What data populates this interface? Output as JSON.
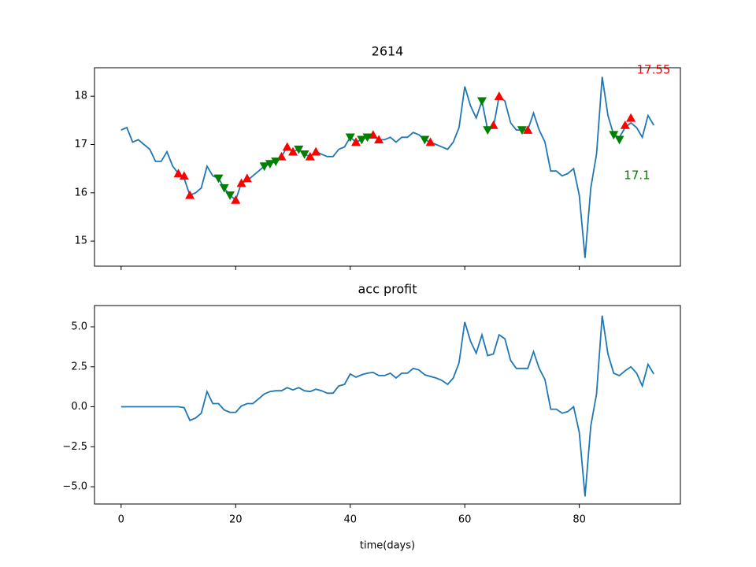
{
  "chart_data": [
    {
      "type": "line",
      "title": "2614",
      "color": "#1f77b4",
      "x": [
        0,
        1,
        2,
        3,
        4,
        5,
        6,
        7,
        8,
        9,
        10,
        11,
        12,
        13,
        14,
        15,
        16,
        17,
        18,
        19,
        20,
        21,
        22,
        23,
        24,
        25,
        26,
        27,
        28,
        29,
        30,
        31,
        32,
        33,
        34,
        35,
        36,
        37,
        38,
        39,
        40,
        41,
        42,
        43,
        44,
        45,
        46,
        47,
        48,
        49,
        50,
        51,
        52,
        53,
        54,
        55,
        56,
        57,
        58,
        59,
        60,
        61,
        62,
        63,
        64,
        65,
        66,
        67,
        68,
        69,
        70,
        71,
        72,
        73,
        74,
        75,
        76,
        77,
        78,
        79,
        80,
        81,
        82,
        83,
        84,
        85,
        86,
        87,
        88,
        89,
        90,
        91,
        92,
        93
      ],
      "values": [
        17.3,
        17.35,
        17.05,
        17.1,
        17.0,
        16.9,
        16.65,
        16.65,
        16.85,
        16.55,
        16.4,
        16.3,
        15.95,
        16.0,
        16.1,
        16.55,
        16.35,
        16.3,
        16.1,
        15.95,
        15.85,
        16.2,
        16.25,
        16.35,
        16.45,
        16.55,
        16.6,
        16.65,
        16.75,
        16.95,
        16.85,
        16.9,
        16.8,
        16.75,
        16.85,
        16.8,
        16.75,
        16.75,
        16.9,
        16.95,
        17.15,
        17.05,
        17.1,
        17.15,
        17.2,
        17.1,
        17.1,
        17.15,
        17.05,
        17.15,
        17.15,
        17.25,
        17.2,
        17.1,
        17.05,
        17.0,
        16.95,
        16.9,
        17.05,
        17.35,
        18.2,
        17.8,
        17.55,
        17.9,
        17.3,
        17.35,
        18.0,
        17.9,
        17.45,
        17.3,
        17.3,
        17.3,
        17.65,
        17.3,
        17.05,
        16.45,
        16.45,
        16.35,
        16.4,
        16.5,
        15.95,
        14.65,
        16.1,
        16.8,
        18.4,
        17.6,
        17.2,
        17.15,
        17.35,
        17.45,
        17.35,
        17.15,
        17.6,
        17.4
      ],
      "buy": {
        "color": "red",
        "x": [
          10,
          11,
          12,
          20,
          21,
          22,
          28,
          29,
          30,
          33,
          34,
          41,
          44,
          45,
          54,
          65,
          66,
          71,
          88,
          89
        ],
        "values": [
          16.4,
          16.35,
          15.95,
          15.85,
          16.2,
          16.3,
          16.75,
          16.95,
          16.85,
          16.75,
          16.85,
          17.05,
          17.2,
          17.1,
          17.05,
          17.4,
          18.0,
          17.3,
          17.4,
          17.55
        ]
      },
      "sell": {
        "color": "green",
        "x": [
          17,
          18,
          19,
          25,
          26,
          27,
          31,
          32,
          40,
          42,
          43,
          53,
          63,
          64,
          70,
          86,
          87
        ],
        "values": [
          16.3,
          16.1,
          15.95,
          16.55,
          16.6,
          16.65,
          16.9,
          16.8,
          17.15,
          17.1,
          17.15,
          17.1,
          17.9,
          17.3,
          17.3,
          17.2,
          17.1
        ]
      },
      "annotations": [
        {
          "text": "17.55",
          "color": "red"
        },
        {
          "text": "17.1",
          "color": "green"
        }
      ],
      "xlim": [
        -4.65,
        97.65
      ],
      "xticks": [
        0,
        20,
        40,
        60,
        80
      ],
      "ylim": [
        14.48,
        18.59
      ],
      "yticks": [
        15,
        16,
        17,
        18
      ]
    },
    {
      "type": "line",
      "title": "acc profit",
      "color": "#1f77b4",
      "xlabel": "time(days)",
      "x": [
        0,
        1,
        2,
        3,
        4,
        5,
        6,
        7,
        8,
        9,
        10,
        11,
        12,
        13,
        14,
        15,
        16,
        17,
        18,
        19,
        20,
        21,
        22,
        23,
        24,
        25,
        26,
        27,
        28,
        29,
        30,
        31,
        32,
        33,
        34,
        35,
        36,
        37,
        38,
        39,
        40,
        41,
        42,
        43,
        44,
        45,
        46,
        47,
        48,
        49,
        50,
        51,
        52,
        53,
        54,
        55,
        56,
        57,
        58,
        59,
        60,
        61,
        62,
        63,
        64,
        65,
        66,
        67,
        68,
        69,
        70,
        71,
        72,
        73,
        74,
        75,
        76,
        77,
        78,
        79,
        80,
        81,
        82,
        83,
        84,
        85,
        86,
        87,
        88,
        89,
        90,
        91,
        92,
        93
      ],
      "values": [
        0,
        0,
        0,
        0,
        0,
        0,
        0,
        0,
        0,
        0,
        0,
        -0.05,
        -0.85,
        -0.7,
        -0.4,
        0.95,
        0.2,
        0.2,
        -0.2,
        -0.35,
        -0.35,
        0.05,
        0.2,
        0.2,
        0.5,
        0.8,
        0.95,
        1.0,
        1.0,
        1.2,
        1.05,
        1.2,
        1.0,
        0.95,
        1.1,
        1.0,
        0.85,
        0.85,
        1.3,
        1.4,
        2.05,
        1.85,
        2.0,
        2.1,
        2.15,
        1.95,
        1.95,
        2.1,
        1.8,
        2.1,
        2.1,
        2.4,
        2.3,
        2.0,
        1.9,
        1.8,
        1.65,
        1.4,
        1.8,
        2.75,
        5.3,
        4.1,
        3.35,
        4.5,
        3.2,
        3.3,
        4.5,
        4.25,
        2.9,
        2.4,
        2.4,
        2.4,
        3.45,
        2.4,
        1.7,
        -0.15,
        -0.15,
        -0.4,
        -0.3,
        0.0,
        -1.6,
        -5.6,
        -1.2,
        0.8,
        5.7,
        3.3,
        2.1,
        1.95,
        2.25,
        2.5,
        2.1,
        1.3,
        2.65,
        2.05
      ],
      "xlim": [
        -4.65,
        97.65
      ],
      "xticks": [
        0,
        20,
        40,
        60,
        80
      ],
      "ylim": [
        -6.08,
        6.33
      ],
      "yticks": [
        {
          "value": -5,
          "label": "−5.0"
        },
        {
          "value": -2.5,
          "label": "−2.5"
        },
        {
          "value": 0,
          "label": "0.0"
        },
        {
          "value": 2.5,
          "label": "2.5"
        },
        {
          "value": 5,
          "label": "5.0"
        }
      ]
    }
  ]
}
